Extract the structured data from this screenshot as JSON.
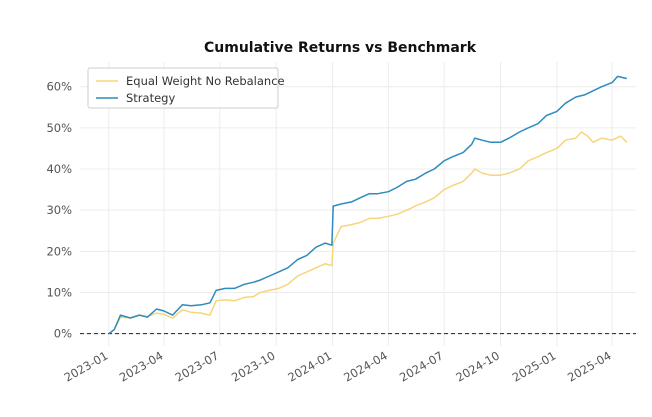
{
  "chart_data": {
    "type": "line",
    "title": "Cumulative Returns vs Benchmark",
    "xlabel": "",
    "ylabel": "",
    "x_range": [
      "2022-11-15",
      "2025-05-10"
    ],
    "ylim": [
      -0.03,
      0.66
    ],
    "y_ticks": [
      0,
      0.1,
      0.2,
      0.3,
      0.4,
      0.5,
      0.6
    ],
    "y_tick_labels": [
      "0%",
      "10%",
      "20%",
      "30%",
      "40%",
      "50%",
      "60%"
    ],
    "x_ticks": [
      "2023-01-01",
      "2023-04-01",
      "2023-07-01",
      "2023-10-01",
      "2024-01-01",
      "2024-04-01",
      "2024-07-01",
      "2024-10-01",
      "2025-01-01",
      "2025-04-01"
    ],
    "x_tick_labels": [
      "2023-01",
      "2023-04",
      "2023-07",
      "2023-10",
      "2024-01",
      "2024-04",
      "2024-07",
      "2024-10",
      "2025-01",
      "2025-04"
    ],
    "grid": true,
    "legend_position": "top-left",
    "baseline": 0,
    "series": [
      {
        "name": "Equal Weight No Rebalance",
        "color": "#f7d57a",
        "points": [
          [
            "2023-01-01",
            0.0
          ],
          [
            "2023-01-10",
            0.01
          ],
          [
            "2023-01-20",
            0.04
          ],
          [
            "2023-02-05",
            0.038
          ],
          [
            "2023-02-20",
            0.045
          ],
          [
            "2023-03-05",
            0.042
          ],
          [
            "2023-03-20",
            0.05
          ],
          [
            "2023-04-01",
            0.047
          ],
          [
            "2023-04-15",
            0.038
          ],
          [
            "2023-05-01",
            0.058
          ],
          [
            "2023-05-15",
            0.052
          ],
          [
            "2023-06-01",
            0.05
          ],
          [
            "2023-06-15",
            0.045
          ],
          [
            "2023-06-25",
            0.08
          ],
          [
            "2023-07-10",
            0.082
          ],
          [
            "2023-07-25",
            0.08
          ],
          [
            "2023-08-10",
            0.088
          ],
          [
            "2023-08-25",
            0.09
          ],
          [
            "2023-09-05",
            0.1
          ],
          [
            "2023-09-20",
            0.105
          ],
          [
            "2023-10-05",
            0.11
          ],
          [
            "2023-10-20",
            0.12
          ],
          [
            "2023-11-05",
            0.14
          ],
          [
            "2023-11-20",
            0.15
          ],
          [
            "2023-12-05",
            0.16
          ],
          [
            "2023-12-20",
            0.17
          ],
          [
            "2023-12-31",
            0.165
          ],
          [
            "2024-01-02",
            0.22
          ],
          [
            "2024-01-15",
            0.26
          ],
          [
            "2024-02-01",
            0.265
          ],
          [
            "2024-02-15",
            0.27
          ],
          [
            "2024-03-01",
            0.28
          ],
          [
            "2024-03-15",
            0.28
          ],
          [
            "2024-04-01",
            0.285
          ],
          [
            "2024-04-15",
            0.29
          ],
          [
            "2024-05-01",
            0.3
          ],
          [
            "2024-05-15",
            0.31
          ],
          [
            "2024-06-01",
            0.32
          ],
          [
            "2024-06-15",
            0.33
          ],
          [
            "2024-07-01",
            0.35
          ],
          [
            "2024-07-15",
            0.36
          ],
          [
            "2024-08-01",
            0.37
          ],
          [
            "2024-08-15",
            0.39
          ],
          [
            "2024-08-20",
            0.4
          ],
          [
            "2024-09-01",
            0.39
          ],
          [
            "2024-09-15",
            0.385
          ],
          [
            "2024-10-01",
            0.385
          ],
          [
            "2024-10-15",
            0.39
          ],
          [
            "2024-11-01",
            0.4
          ],
          [
            "2024-11-15",
            0.42
          ],
          [
            "2024-12-01",
            0.43
          ],
          [
            "2024-12-15",
            0.44
          ],
          [
            "2025-01-01",
            0.45
          ],
          [
            "2025-01-15",
            0.47
          ],
          [
            "2025-02-01",
            0.475
          ],
          [
            "2025-02-10",
            0.49
          ],
          [
            "2025-02-20",
            0.48
          ],
          [
            "2025-03-01",
            0.465
          ],
          [
            "2025-03-15",
            0.475
          ],
          [
            "2025-04-01",
            0.47
          ],
          [
            "2025-04-15",
            0.48
          ],
          [
            "2025-04-25",
            0.465
          ]
        ]
      },
      {
        "name": "Strategy",
        "color": "#2e8bbd",
        "points": [
          [
            "2023-01-01",
            0.0
          ],
          [
            "2023-01-10",
            0.01
          ],
          [
            "2023-01-20",
            0.045
          ],
          [
            "2023-02-05",
            0.038
          ],
          [
            "2023-02-20",
            0.045
          ],
          [
            "2023-03-05",
            0.04
          ],
          [
            "2023-03-20",
            0.06
          ],
          [
            "2023-04-01",
            0.055
          ],
          [
            "2023-04-15",
            0.045
          ],
          [
            "2023-05-01",
            0.07
          ],
          [
            "2023-05-15",
            0.068
          ],
          [
            "2023-06-01",
            0.07
          ],
          [
            "2023-06-15",
            0.075
          ],
          [
            "2023-06-25",
            0.105
          ],
          [
            "2023-07-10",
            0.11
          ],
          [
            "2023-07-25",
            0.11
          ],
          [
            "2023-08-10",
            0.12
          ],
          [
            "2023-08-25",
            0.125
          ],
          [
            "2023-09-05",
            0.13
          ],
          [
            "2023-09-20",
            0.14
          ],
          [
            "2023-10-05",
            0.15
          ],
          [
            "2023-10-20",
            0.16
          ],
          [
            "2023-11-05",
            0.18
          ],
          [
            "2023-11-20",
            0.19
          ],
          [
            "2023-12-05",
            0.21
          ],
          [
            "2023-12-20",
            0.22
          ],
          [
            "2023-12-31",
            0.215
          ],
          [
            "2024-01-02",
            0.31
          ],
          [
            "2024-01-15",
            0.315
          ],
          [
            "2024-02-01",
            0.32
          ],
          [
            "2024-02-15",
            0.33
          ],
          [
            "2024-03-01",
            0.34
          ],
          [
            "2024-03-15",
            0.34
          ],
          [
            "2024-04-01",
            0.345
          ],
          [
            "2024-04-15",
            0.355
          ],
          [
            "2024-05-01",
            0.37
          ],
          [
            "2024-05-15",
            0.375
          ],
          [
            "2024-06-01",
            0.39
          ],
          [
            "2024-06-15",
            0.4
          ],
          [
            "2024-07-01",
            0.42
          ],
          [
            "2024-07-15",
            0.43
          ],
          [
            "2024-08-01",
            0.44
          ],
          [
            "2024-08-15",
            0.46
          ],
          [
            "2024-08-20",
            0.475
          ],
          [
            "2024-09-01",
            0.47
          ],
          [
            "2024-09-15",
            0.465
          ],
          [
            "2024-10-01",
            0.465
          ],
          [
            "2024-10-15",
            0.475
          ],
          [
            "2024-11-01",
            0.49
          ],
          [
            "2024-11-15",
            0.5
          ],
          [
            "2024-12-01",
            0.51
          ],
          [
            "2024-12-15",
            0.53
          ],
          [
            "2025-01-01",
            0.54
          ],
          [
            "2025-01-15",
            0.56
          ],
          [
            "2025-02-01",
            0.575
          ],
          [
            "2025-02-15",
            0.58
          ],
          [
            "2025-03-01",
            0.59
          ],
          [
            "2025-03-15",
            0.6
          ],
          [
            "2025-04-01",
            0.61
          ],
          [
            "2025-04-10",
            0.625
          ],
          [
            "2025-04-25",
            0.62
          ]
        ]
      }
    ]
  }
}
